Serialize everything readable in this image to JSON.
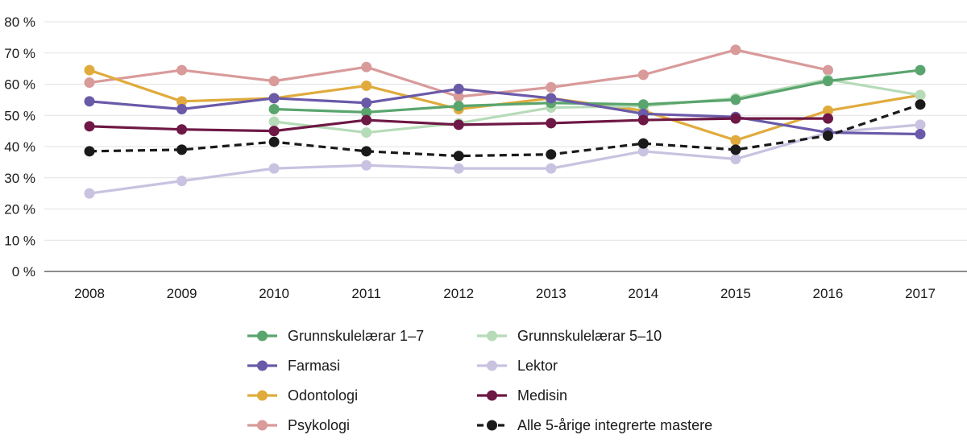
{
  "chart_data": {
    "type": "line",
    "title": "",
    "xlabel": "",
    "ylabel": "",
    "ylim": [
      0,
      80
    ],
    "grid": true,
    "legend_position": "bottom",
    "x": [
      "2008",
      "2009",
      "2010",
      "2011",
      "2012",
      "2013",
      "2014",
      "2015",
      "2016",
      "2017"
    ],
    "y_tick_labels": [
      "0 %",
      "10 %",
      "20 %",
      "30 %",
      "40 %",
      "50 %",
      "60 %",
      "70 %",
      "80 %"
    ],
    "series": [
      {
        "name": "Grunnskulelærar 1–7",
        "color": "#5aa56e",
        "dashed": false,
        "values": [
          null,
          null,
          52,
          51,
          53,
          54,
          53.5,
          55,
          61,
          64.5
        ]
      },
      {
        "name": "Grunnskulelærar 5–10",
        "color": "#b6dbb8",
        "dashed": false,
        "values": [
          null,
          null,
          48,
          44.5,
          47.5,
          52.5,
          53,
          55.5,
          61.5,
          56.5
        ]
      },
      {
        "name": "Farmasi",
        "color": "#6a5aa8",
        "dashed": false,
        "values": [
          54.5,
          52,
          55.5,
          54,
          58.5,
          55.5,
          50.5,
          49.5,
          44.5,
          44
        ]
      },
      {
        "name": "Lektor",
        "color": "#c9c2e0",
        "dashed": false,
        "values": [
          25,
          29,
          33,
          34,
          33,
          33,
          38.5,
          36,
          44.5,
          47
        ]
      },
      {
        "name": "Odontologi",
        "color": "#e0ab3c",
        "dashed": false,
        "values": [
          64.5,
          54.5,
          55.5,
          59.5,
          52,
          55.5,
          51.5,
          42,
          51.5,
          56.5
        ]
      },
      {
        "name": "Medisin",
        "color": "#6e1845",
        "dashed": false,
        "values": [
          46.5,
          45.5,
          45,
          48.5,
          47,
          47.5,
          48.5,
          49,
          49,
          null
        ]
      },
      {
        "name": "Psykologi",
        "color": "#d99a9a",
        "dashed": false,
        "values": [
          60.5,
          64.5,
          61,
          65.5,
          56,
          59,
          63,
          71,
          64.5,
          null
        ]
      },
      {
        "name": "Alle 5-årige integrerte mastere",
        "color": "#1a1a1a",
        "dashed": true,
        "values": [
          38.5,
          39,
          41.5,
          38.5,
          37,
          37.5,
          41,
          39,
          43.5,
          53.5
        ]
      }
    ]
  }
}
